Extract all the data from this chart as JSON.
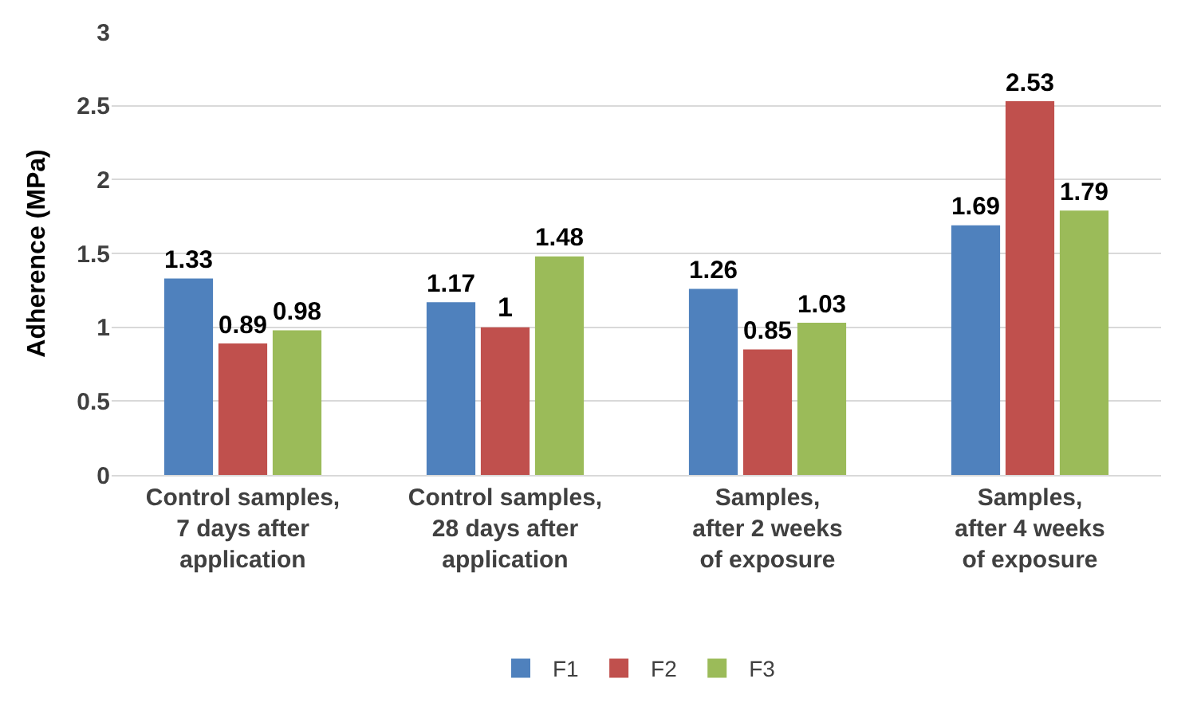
{
  "chart_data": {
    "type": "bar",
    "ylabel": "Adherence (MPa)",
    "categories": [
      "Control samples, 7 days after application",
      "Control samples, 28 days after application",
      "Samples,  after 2 weeks of exposure",
      "Samples, after 4 weeks of exposure"
    ],
    "series": [
      {
        "name": "F1",
        "color": "#4f81bd",
        "values": [
          1.33,
          1.17,
          1.26,
          1.69
        ]
      },
      {
        "name": "F2",
        "color": "#c0504d",
        "values": [
          0.89,
          1,
          0.85,
          2.53
        ]
      },
      {
        "name": "F3",
        "color": "#9bbb59",
        "values": [
          0.98,
          1.48,
          1.03,
          1.79
        ]
      }
    ],
    "ylim": [
      0,
      3
    ],
    "yticks": [
      0,
      0.5,
      1,
      1.5,
      2,
      2.5,
      3
    ],
    "grid": "y",
    "legend": "bottom",
    "data_labels": true
  }
}
